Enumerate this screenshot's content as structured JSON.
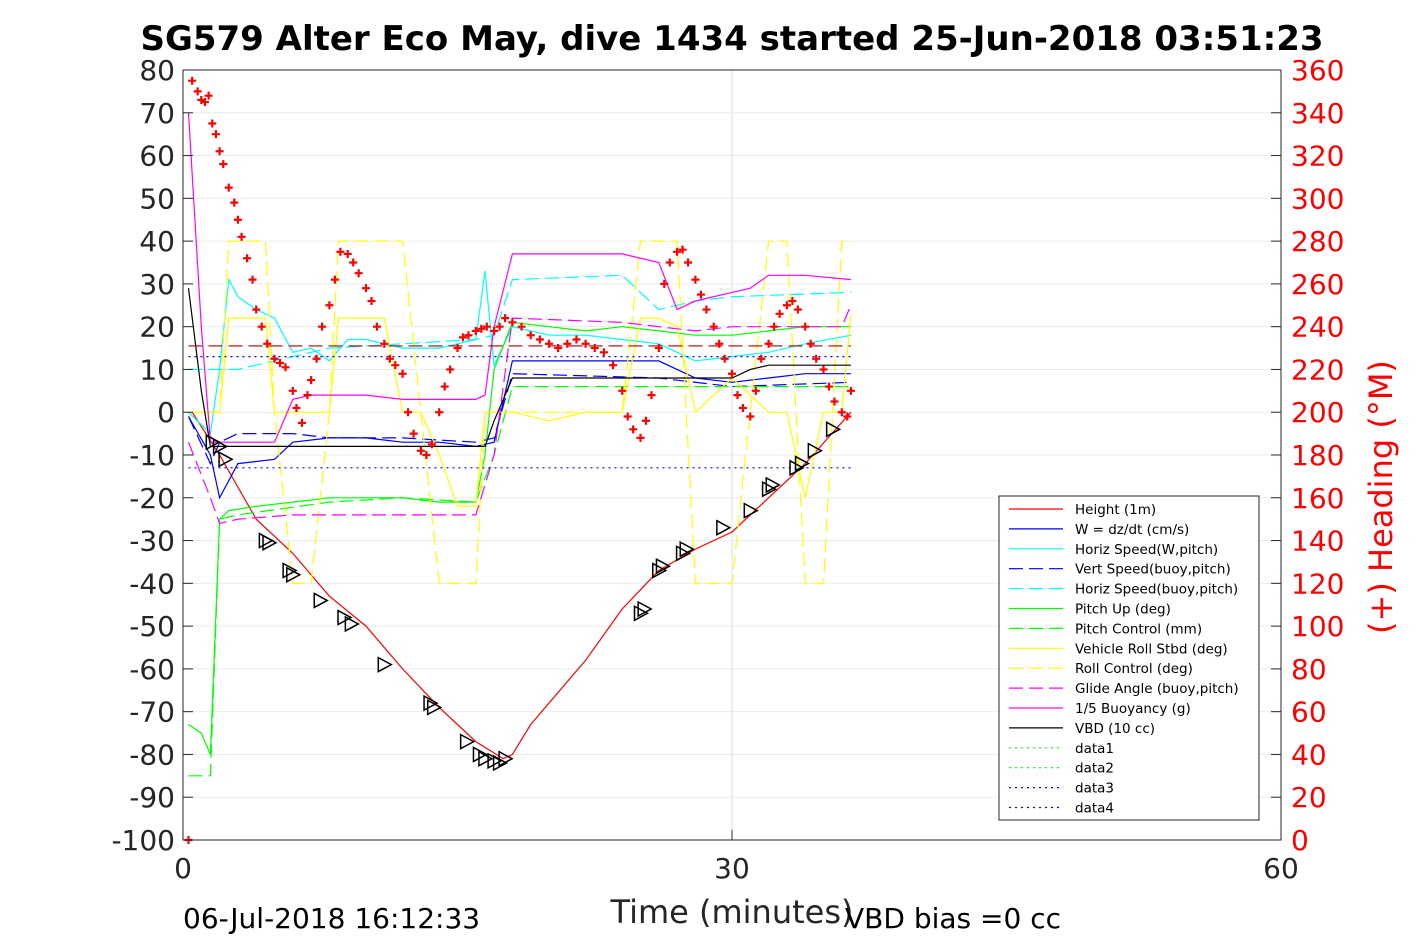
{
  "chart_data": {
    "type": "line",
    "title": "SG579 Alter Eco May, dive 1434 started 25-Jun-2018 03:51:23",
    "xlabel": "Time (minutes)",
    "ylabel_left": "",
    "ylabel_right": "(+) Heading (°M)",
    "xlim": [
      0,
      60
    ],
    "ylim_left": [
      -100,
      80
    ],
    "ylim_right": [
      0,
      360
    ],
    "xticks": [
      0,
      30,
      60
    ],
    "yticks_left": [
      80,
      70,
      60,
      50,
      40,
      30,
      20,
      10,
      0,
      -10,
      -20,
      -30,
      -40,
      -50,
      -60,
      -70,
      -80,
      -90,
      -100
    ],
    "yticks_right": [
      360,
      340,
      320,
      300,
      280,
      260,
      240,
      220,
      200,
      180,
      160,
      140,
      120,
      100,
      80,
      60,
      40,
      20,
      0
    ],
    "grid": "x-only",
    "legend_position": "lower-right",
    "footer_left": "06-Jul-2018 16:12:33",
    "footer_right": "VBD bias =0 cc",
    "series": [
      {
        "name": "Height (1m)",
        "color": "#ff0000",
        "dash": "solid",
        "x": [
          0.5,
          2,
          4,
          6,
          8,
          10,
          12,
          14,
          16,
          17.5,
          18,
          19,
          22,
          24,
          26,
          28,
          30,
          32,
          34,
          36.5
        ],
        "y": [
          0,
          -10,
          -25,
          -33,
          -43,
          -50,
          -60,
          -69,
          -77,
          -81,
          -80,
          -73,
          -58,
          -46,
          -37,
          -32,
          -28,
          -20,
          -12,
          0
        ]
      },
      {
        "name": "W = dz/dt (cm/s)",
        "color": "#0000ff",
        "dash": "solid",
        "x": [
          0.3,
          1.5,
          2,
          3,
          5,
          6,
          8,
          10,
          12,
          14,
          16,
          17,
          18,
          20,
          22,
          24,
          26,
          28,
          30,
          32,
          34,
          36.5
        ],
        "y": [
          -1,
          -10,
          -20,
          -12,
          -11,
          -7,
          -6,
          -6,
          -7,
          -7,
          -8,
          -7,
          12,
          12,
          12,
          12,
          12,
          8,
          7,
          8,
          9,
          9
        ]
      },
      {
        "name": "Horiz Speed(W,pitch)",
        "color": "#00ffff",
        "dash": "solid",
        "x": [
          0.3,
          1.5,
          2,
          2.5,
          3,
          4,
          5,
          6,
          7,
          8,
          9,
          10,
          12,
          14,
          16,
          16.5,
          17,
          18,
          20,
          22,
          24,
          26,
          28,
          30,
          32,
          34,
          36.5
        ],
        "y": [
          0,
          -5,
          10,
          31,
          27,
          24,
          22,
          14,
          15,
          12,
          17,
          17,
          15,
          15,
          17,
          33,
          11,
          20,
          18,
          18,
          17,
          16,
          12,
          13,
          14,
          16,
          18
        ]
      },
      {
        "name": "Vert Speed(buoy,pitch)",
        "color": "#0000ff",
        "dash": "dashed",
        "x": [
          0.3,
          1.5,
          2,
          3,
          6,
          8,
          12,
          16,
          17,
          18,
          26,
          30,
          36.5
        ],
        "y": [
          -1,
          -12,
          -7,
          -5,
          -5,
          -6,
          -6,
          -7,
          -6,
          9,
          8,
          6,
          7
        ]
      },
      {
        "name": "Horiz Speed(buoy,pitch)",
        "color": "#00ffff",
        "dash": "dashed",
        "x": [
          0.3,
          1.5,
          2,
          3,
          6,
          8,
          12,
          16,
          17,
          18,
          24,
          26,
          28,
          30,
          36.5
        ],
        "y": [
          10,
          10,
          10,
          10,
          13,
          15,
          16,
          17,
          18,
          31,
          32,
          24,
          26,
          27,
          28
        ]
      },
      {
        "name": "Pitch Up (deg)",
        "color": "#00ff00",
        "dash": "solid",
        "x": [
          0.3,
          1,
          1.5,
          2,
          2.5,
          4,
          6,
          8,
          10,
          12,
          14,
          16,
          16.5,
          17,
          18,
          20,
          22,
          24,
          26,
          28,
          30,
          32,
          34,
          36.5
        ],
        "y": [
          -73,
          -75,
          -80,
          -25,
          -23,
          -22,
          -21,
          -20,
          -20,
          -20,
          -21,
          -21,
          -10,
          10,
          21,
          20,
          19,
          20,
          19,
          18,
          18,
          19,
          20,
          20
        ]
      },
      {
        "name": "Pitch Control (mm)",
        "color": "#00ff00",
        "dash": "dashed",
        "x": [
          0.3,
          1.5,
          2,
          3,
          8,
          12,
          16,
          17,
          18,
          20,
          24,
          30,
          36.5
        ],
        "y": [
          -85,
          -85,
          -25,
          -24,
          -21,
          -20,
          -21,
          -10,
          6,
          6,
          6,
          6,
          6
        ]
      },
      {
        "name": "Vehicle Roll Stbd (deg)",
        "color": "#ffff00",
        "dash": "solid",
        "x": [
          0.3,
          1,
          2,
          2.5,
          4,
          4.5,
          5,
          5.5,
          6,
          7,
          8,
          8.5,
          9,
          11,
          12,
          13,
          14,
          15,
          16,
          16.5,
          17,
          18,
          20,
          22,
          24,
          25,
          26,
          27,
          28,
          30,
          32,
          33,
          34,
          35,
          36,
          36.5
        ],
        "y": [
          0,
          0,
          0,
          22,
          22,
          22,
          0,
          0,
          0,
          0,
          0,
          22,
          22,
          22,
          0,
          0,
          -10,
          -22,
          -22,
          0,
          0,
          0,
          -2,
          0,
          0,
          22,
          22,
          20,
          0,
          8,
          0,
          0,
          -20,
          0,
          0,
          23
        ]
      },
      {
        "name": "Roll Control (deg)",
        "color": "#ffff00",
        "dash": "dashed",
        "x": [
          0.3,
          2,
          2.5,
          3,
          4.5,
          5,
          6,
          7,
          8,
          8.5,
          9,
          12,
          13,
          14,
          15,
          16,
          16.5,
          17,
          18,
          23,
          24,
          25,
          26,
          27,
          28,
          29,
          30,
          31,
          32,
          33,
          34,
          35,
          36,
          36.5
        ],
        "y": [
          0,
          0,
          40,
          40,
          40,
          0,
          -40,
          -40,
          0,
          40,
          40,
          40,
          0,
          -40,
          -40,
          -40,
          0,
          0,
          0,
          0,
          0,
          40,
          40,
          40,
          -40,
          -40,
          -40,
          0,
          40,
          40,
          -40,
          -40,
          40,
          40
        ]
      },
      {
        "name": "Glide Angle (buoy,pitch)",
        "color": "#ff00ff",
        "dash": "dashed",
        "x": [
          0.3,
          1.5,
          2,
          3,
          6,
          12,
          16,
          17,
          18,
          24,
          26,
          28,
          30,
          36,
          36.5
        ],
        "y": [
          -7,
          -20,
          -26,
          -25,
          -24,
          -24,
          -24,
          -10,
          22,
          21,
          20,
          19,
          20,
          20,
          25
        ]
      },
      {
        "name": "1/5 Buoyancy (g)",
        "color": "#ff00ff",
        "dash": "solid",
        "x": [
          0.3,
          1,
          1.5,
          2,
          3,
          5,
          6,
          7,
          10,
          12,
          16,
          16.5,
          17,
          18,
          24,
          26,
          27,
          28,
          30,
          31,
          32,
          34,
          36.5
        ],
        "y": [
          70,
          20,
          -7,
          -7,
          -7,
          -7,
          3,
          4,
          4,
          3,
          3,
          4,
          20,
          37,
          37,
          35,
          24,
          26,
          28,
          29,
          32,
          32,
          31
        ]
      },
      {
        "name": "VBD (10 cc)",
        "color": "#000000",
        "dash": "solid",
        "x": [
          0.3,
          1,
          1.5,
          2,
          5,
          6,
          8,
          12,
          16,
          16.5,
          17,
          18,
          24,
          26,
          28,
          30,
          31,
          32,
          36.5
        ],
        "y": [
          29,
          5,
          -8,
          -8,
          -8,
          -8,
          -8,
          -8,
          -8,
          -8,
          -2,
          8,
          8,
          8,
          8,
          8,
          10,
          11,
          11
        ]
      },
      {
        "name": "data1",
        "color": "#00ff00",
        "dash": "dotted",
        "x": [],
        "y": []
      },
      {
        "name": "data2",
        "color": "#00ff00",
        "dash": "dotted",
        "x": [],
        "y": []
      },
      {
        "name": "data3",
        "color": "#0000ff",
        "dash": "dotted",
        "x": [
          0.3,
          36.5
        ],
        "y": [
          13,
          13
        ]
      },
      {
        "name": "data4",
        "color": "#0000ff",
        "dash": "dotted",
        "x": [
          0.3,
          36.5
        ],
        "y": [
          -13,
          -13
        ]
      }
    ],
    "reference_line": {
      "color": "#aa0000",
      "dash": "dashed",
      "y": 15.5,
      "x": [
        0.3,
        36.5
      ]
    },
    "heading_markers": {
      "color": "#ff0000",
      "marker": "+",
      "axis": "right",
      "x": [
        0.3,
        0.5,
        0.8,
        1.0,
        1.2,
        1.4,
        1.6,
        1.8,
        2.0,
        2.2,
        2.5,
        2.8,
        3.0,
        3.2,
        3.5,
        3.8,
        4.0,
        4.3,
        4.6,
        5.0,
        5.3,
        5.6,
        6.0,
        6.2,
        6.5,
        6.8,
        7.0,
        7.3,
        7.6,
        8.0,
        8.3,
        8.6,
        9.0,
        9.3,
        9.6,
        10.0,
        10.3,
        10.6,
        11.0,
        11.3,
        11.6,
        12.0,
        12.3,
        12.6,
        13.0,
        13.3,
        13.6,
        14.0,
        14.3,
        14.6,
        15.0,
        15.3,
        15.6,
        16.0,
        16.3,
        16.6,
        17.0,
        17.3,
        17.6,
        18.0,
        18.5,
        19.0,
        19.5,
        20.0,
        20.5,
        21.0,
        21.5,
        22.0,
        22.5,
        23.0,
        23.5,
        24.0,
        24.3,
        24.6,
        25.0,
        25.3,
        25.6,
        26.0,
        26.3,
        26.6,
        27.0,
        27.3,
        27.6,
        28.0,
        28.3,
        28.6,
        29.0,
        29.3,
        29.6,
        30.0,
        30.3,
        30.6,
        31.0,
        31.3,
        31.6,
        32.0,
        32.3,
        32.6,
        33.0,
        33.3,
        33.6,
        34.0,
        34.3,
        34.6,
        35.0,
        35.3,
        35.6,
        36.0,
        36.3,
        36.5
      ],
      "y": [
        0,
        355,
        350,
        346,
        345,
        348,
        335,
        330,
        322,
        316,
        305,
        298,
        290,
        282,
        272,
        262,
        248,
        240,
        232,
        225,
        223,
        221,
        210,
        202,
        195,
        208,
        215,
        225,
        240,
        250,
        262,
        275,
        274,
        270,
        265,
        258,
        252,
        240,
        232,
        225,
        222,
        218,
        200,
        190,
        182,
        180,
        185,
        200,
        212,
        220,
        230,
        235,
        236,
        238,
        239,
        240,
        238,
        240,
        244,
        242,
        240,
        236,
        234,
        232,
        230,
        232,
        234,
        232,
        230,
        228,
        222,
        210,
        198,
        192,
        188,
        196,
        208,
        230,
        260,
        270,
        275,
        276,
        270,
        262,
        255,
        248,
        240,
        232,
        225,
        218,
        208,
        202,
        198,
        210,
        225,
        232,
        240,
        246,
        250,
        252,
        248,
        240,
        232,
        225,
        220,
        212,
        205,
        200,
        198,
        210
      ]
    },
    "depth_triangles": {
      "color": "#000000",
      "marker": "triangle",
      "x": [
        1.6,
        2.0,
        2.3,
        4.5,
        4.7,
        5.8,
        6.0,
        7.5,
        8.8,
        9.2,
        11.0,
        13.5,
        13.7,
        15.5,
        16.2,
        16.5,
        17.0,
        17.3,
        17.6,
        25.0,
        25.2,
        26.0,
        26.2,
        27.3,
        27.5,
        29.5,
        31.0,
        32.0,
        32.2,
        33.5,
        33.8,
        34.5,
        35.5
      ],
      "y": [
        -7,
        -8,
        -11,
        -30,
        -30.5,
        -37,
        -38,
        -44,
        -48,
        -49.5,
        -59,
        -68,
        -69,
        -77,
        -80,
        -81,
        -81.5,
        -82,
        -81,
        -47,
        -46,
        -37,
        -36,
        -33,
        -32,
        -27,
        -23,
        -18,
        -17,
        -13,
        -12,
        -9,
        -4
      ]
    }
  }
}
